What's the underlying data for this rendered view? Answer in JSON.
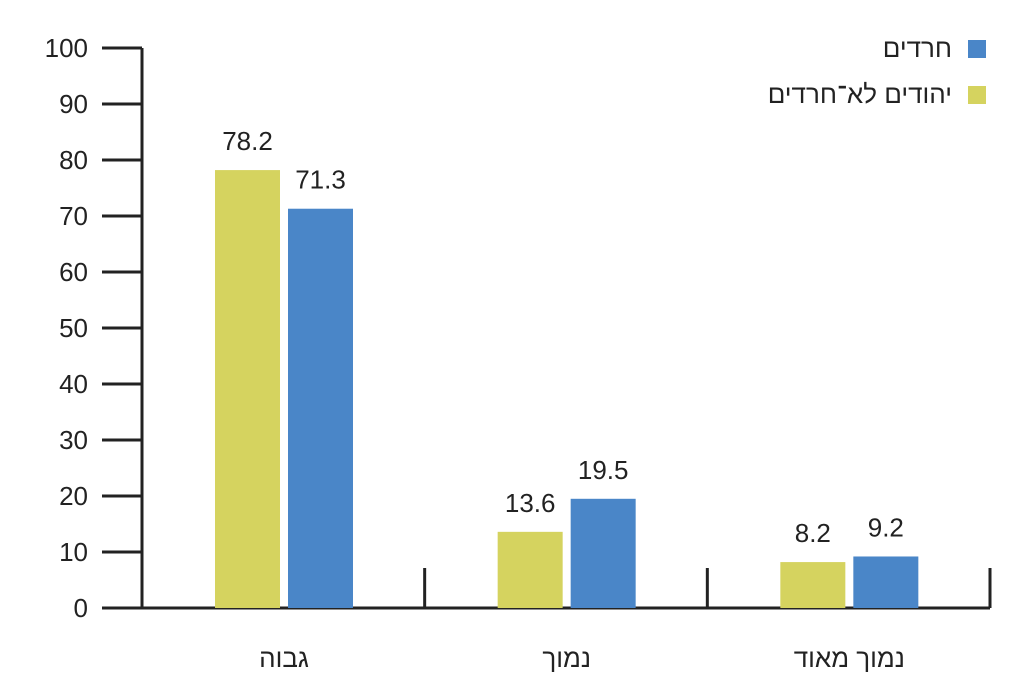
{
  "chart_data": {
    "type": "bar",
    "categories": [
      "גבוה",
      "נמוך",
      "נמוך מאוד"
    ],
    "series": [
      {
        "name": "יהודים לא־חרדים",
        "color": "#d5d35f",
        "values": [
          78.2,
          13.6,
          8.2
        ]
      },
      {
        "name": "חרדים",
        "color": "#4a86c8",
        "values": [
          71.3,
          19.5,
          9.2
        ]
      }
    ],
    "ylim": [
      0,
      100
    ],
    "yticks": [
      0,
      10,
      20,
      30,
      40,
      50,
      60,
      70,
      80,
      90,
      100
    ],
    "grid": false,
    "legend_position": "top-right",
    "title": "",
    "xlabel": "",
    "ylabel": ""
  }
}
